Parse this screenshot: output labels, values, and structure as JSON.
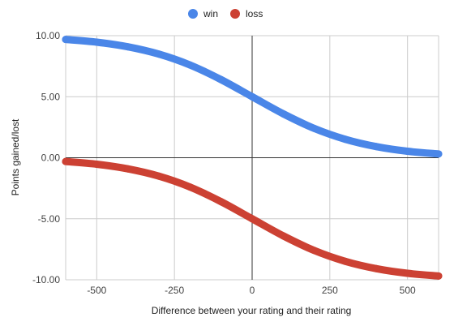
{
  "chart_data": {
    "type": "line",
    "xlabel": "Difference between your rating and their rating",
    "ylabel": "Points gained/lost",
    "xlim": [
      -600,
      600
    ],
    "ylim": [
      -10,
      10
    ],
    "x_ticks": [
      -500,
      -250,
      0,
      250,
      500
    ],
    "x_tick_labels": [
      "-500",
      "-250",
      "0",
      "250",
      "500"
    ],
    "y_ticks": [
      10,
      5,
      0,
      -5,
      -10
    ],
    "y_tick_labels": [
      "10.00",
      "5.00",
      "0.00",
      "-5.00",
      "-10.00"
    ],
    "grid": true,
    "legend_position": "top",
    "x": [
      -600,
      -500,
      -400,
      -300,
      -200,
      -100,
      0,
      100,
      200,
      300,
      400,
      500,
      600
    ],
    "series": [
      {
        "name": "win",
        "color": "#4a86e8",
        "values": [
          9.69,
          9.47,
          9.09,
          8.49,
          7.6,
          6.4,
          5.0,
          3.6,
          2.4,
          1.51,
          0.91,
          0.53,
          0.31
        ]
      },
      {
        "name": "loss",
        "color": "#cc4133",
        "values": [
          -0.31,
          -0.53,
          -0.91,
          -1.51,
          -2.4,
          -3.6,
          -5.0,
          -6.4,
          -7.6,
          -8.49,
          -9.09,
          -9.47,
          -9.69
        ]
      }
    ]
  }
}
